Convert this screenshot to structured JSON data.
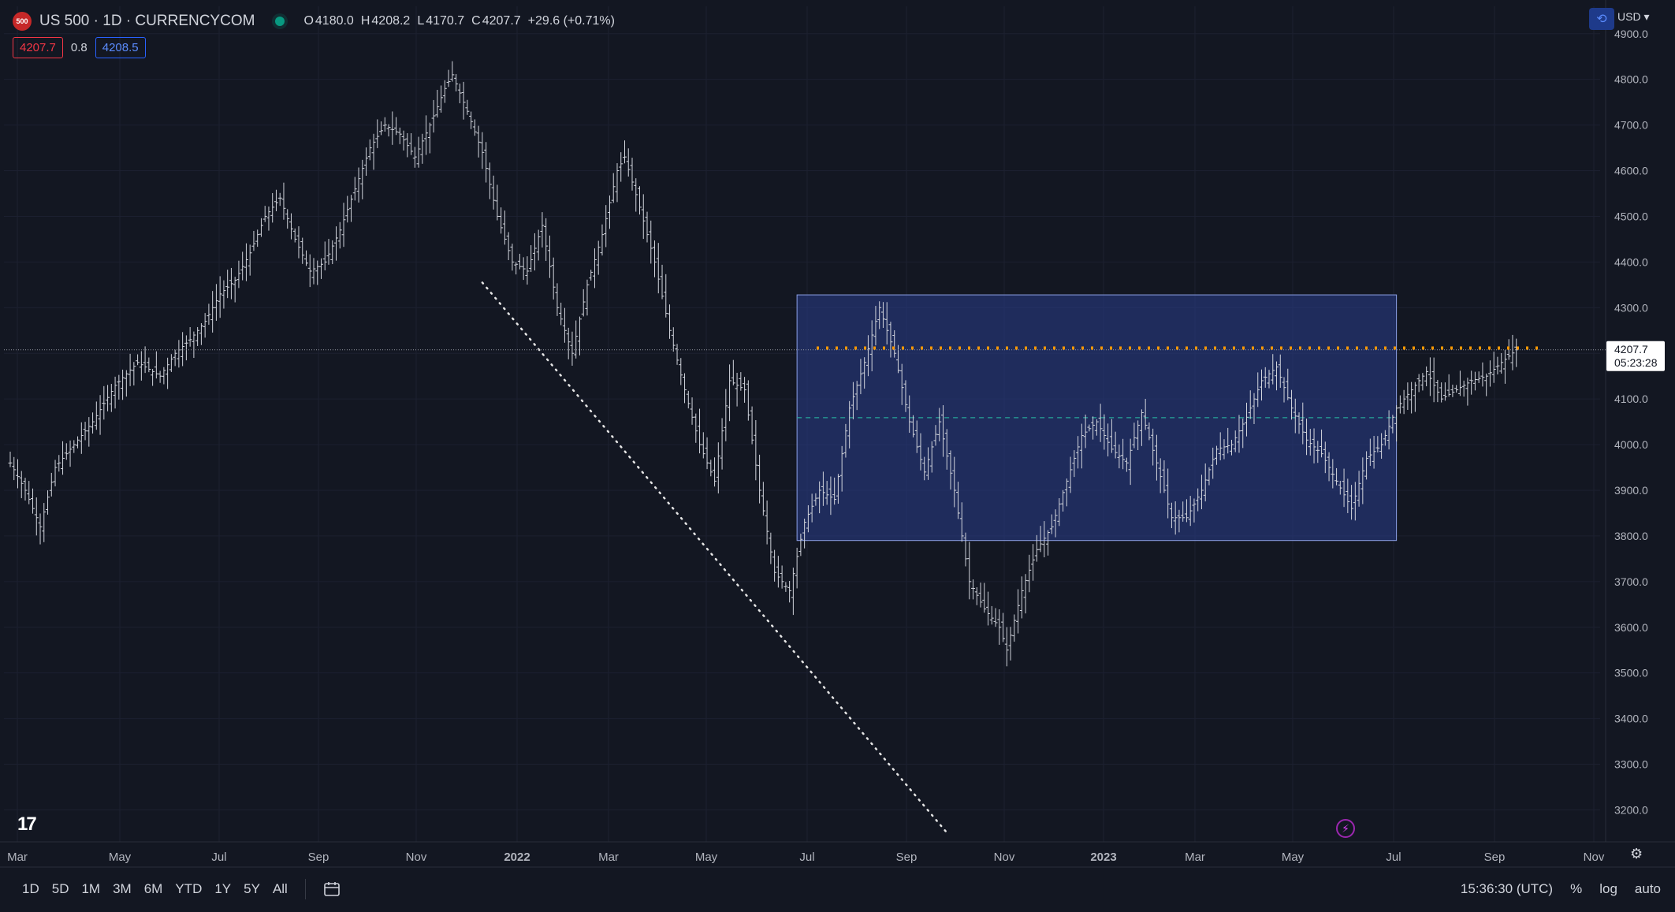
{
  "header": {
    "logo_text": "500",
    "symbol": "US 500 · 1D · CURRENCYCOM",
    "ohlc": [
      {
        "k": "O",
        "v": "4180.0"
      },
      {
        "k": "H",
        "v": "4208.2"
      },
      {
        "k": "L",
        "v": "4170.7"
      },
      {
        "k": "C",
        "v": "4207.7"
      },
      {
        "k": "",
        "v": "+29.6 (+0.71%)"
      }
    ],
    "sell_price": "4207.7",
    "spread": "0.8",
    "buy_price": "4208.5"
  },
  "currency": "USD",
  "colors": {
    "background": "#131722",
    "range_box": "#1e3a8a",
    "candle": "#d1d4dc",
    "current_price_line": "#ff9800",
    "midline": "#26a69a",
    "trendline": "#ffffff"
  },
  "chart_data": {
    "type": "candlestick",
    "y_axis": {
      "ticks": [
        "4900.0",
        "4800.0",
        "4700.0",
        "4600.0",
        "4500.0",
        "4400.0",
        "4300.0",
        "4200.0",
        "4100.0",
        "4000.0",
        "3900.0",
        "3800.0",
        "3700.0",
        "3600.0",
        "3500.0",
        "3400.0",
        "3300.0",
        "3200.0"
      ],
      "range": [
        3130,
        4960
      ]
    },
    "x_axis": {
      "labels": [
        {
          "t": "Mar",
          "bold": false
        },
        {
          "t": "May",
          "bold": false
        },
        {
          "t": "Jul",
          "bold": false
        },
        {
          "t": "Sep",
          "bold": false
        },
        {
          "t": "Nov",
          "bold": false
        },
        {
          "t": "2022",
          "bold": true
        },
        {
          "t": "Mar",
          "bold": false
        },
        {
          "t": "May",
          "bold": false
        },
        {
          "t": "Jul",
          "bold": false
        },
        {
          "t": "Sep",
          "bold": false
        },
        {
          "t": "Nov",
          "bold": false
        },
        {
          "t": "2023",
          "bold": true
        },
        {
          "t": "Mar",
          "bold": false
        },
        {
          "t": "May",
          "bold": false
        },
        {
          "t": "Jul",
          "bold": false
        },
        {
          "t": "Sep",
          "bold": false
        },
        {
          "t": "Nov",
          "bold": false
        }
      ]
    },
    "series_close_path": [
      [
        0,
        3960
      ],
      [
        4,
        3900
      ],
      [
        8,
        3820
      ],
      [
        12,
        3950
      ],
      [
        16,
        3990
      ],
      [
        22,
        4050
      ],
      [
        28,
        4130
      ],
      [
        34,
        4180
      ],
      [
        40,
        4150
      ],
      [
        44,
        4200
      ],
      [
        48,
        4230
      ],
      [
        52,
        4270
      ],
      [
        56,
        4330
      ],
      [
        60,
        4360
      ],
      [
        64,
        4420
      ],
      [
        68,
        4500
      ],
      [
        72,
        4540
      ],
      [
        76,
        4450
      ],
      [
        80,
        4380
      ],
      [
        84,
        4400
      ],
      [
        88,
        4470
      ],
      [
        92,
        4560
      ],
      [
        96,
        4650
      ],
      [
        100,
        4700
      ],
      [
        104,
        4680
      ],
      [
        108,
        4630
      ],
      [
        112,
        4700
      ],
      [
        116,
        4780
      ],
      [
        118,
        4810
      ],
      [
        122,
        4730
      ],
      [
        126,
        4640
      ],
      [
        130,
        4500
      ],
      [
        134,
        4400
      ],
      [
        138,
        4380
      ],
      [
        142,
        4480
      ],
      [
        146,
        4300
      ],
      [
        150,
        4200
      ],
      [
        154,
        4350
      ],
      [
        158,
        4460
      ],
      [
        162,
        4600
      ],
      [
        164,
        4630
      ],
      [
        168,
        4520
      ],
      [
        172,
        4400
      ],
      [
        176,
        4250
      ],
      [
        180,
        4120
      ],
      [
        184,
        4000
      ],
      [
        188,
        3920
      ],
      [
        192,
        4140
      ],
      [
        196,
        4120
      ],
      [
        200,
        3900
      ],
      [
        204,
        3720
      ],
      [
        208,
        3680
      ],
      [
        212,
        3830
      ],
      [
        216,
        3900
      ],
      [
        220,
        3880
      ],
      [
        224,
        4080
      ],
      [
        228,
        4180
      ],
      [
        232,
        4300
      ],
      [
        236,
        4200
      ],
      [
        240,
        4050
      ],
      [
        244,
        3940
      ],
      [
        248,
        4050
      ],
      [
        252,
        3900
      ],
      [
        256,
        3700
      ],
      [
        260,
        3640
      ],
      [
        264,
        3600
      ],
      [
        266,
        3550
      ],
      [
        270,
        3680
      ],
      [
        274,
        3770
      ],
      [
        278,
        3820
      ],
      [
        282,
        3920
      ],
      [
        286,
        4020
      ],
      [
        290,
        4050
      ],
      [
        294,
        3990
      ],
      [
        298,
        3960
      ],
      [
        302,
        4070
      ],
      [
        306,
        3960
      ],
      [
        310,
        3840
      ],
      [
        314,
        3840
      ],
      [
        318,
        3900
      ],
      [
        322,
        3990
      ],
      [
        326,
        4000
      ],
      [
        330,
        4060
      ],
      [
        334,
        4140
      ],
      [
        338,
        4170
      ],
      [
        342,
        4080
      ],
      [
        346,
        4010
      ],
      [
        350,
        3980
      ],
      [
        354,
        3920
      ],
      [
        358,
        3860
      ],
      [
        362,
        3970
      ],
      [
        366,
        4000
      ],
      [
        370,
        4080
      ],
      [
        374,
        4120
      ],
      [
        378,
        4160
      ],
      [
        382,
        4100
      ],
      [
        386,
        4120
      ],
      [
        390,
        4140
      ],
      [
        394,
        4150
      ],
      [
        398,
        4180
      ],
      [
        402,
        4207.7
      ]
    ],
    "range_box": {
      "top": 4328,
      "bottom": 3790,
      "mid": 4059,
      "x_start": 210,
      "x_end": 370
    },
    "current_price": "4207.7",
    "countdown": "05:23:28",
    "trendline": {
      "from": [
        126,
        4355
      ],
      "to": [
        250,
        3150
      ]
    }
  },
  "bottom": {
    "ranges": [
      "1D",
      "5D",
      "1M",
      "3M",
      "6M",
      "YTD",
      "1Y",
      "5Y",
      "All"
    ],
    "time": "15:36:30 (UTC)",
    "percent": "%",
    "log": "log",
    "auto": "auto"
  },
  "tv_logo": "17"
}
